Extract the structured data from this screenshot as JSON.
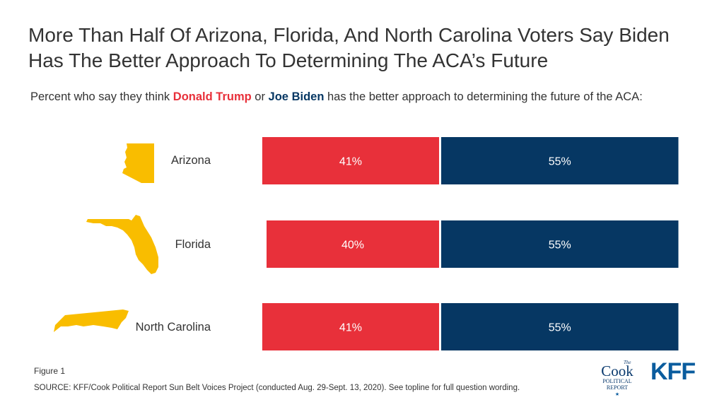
{
  "title": "More Than Half Of Arizona, Florida, And North Carolina Voters Say Biden Has The Better Approach To Determining The ACA’s Future",
  "subtitle": {
    "prefix": "Percent who say they think ",
    "trump": "Donald Trump",
    "mid": " or ",
    "biden": "Joe Biden",
    "suffix": " has the better approach to determining the future of the ACA:"
  },
  "colors": {
    "trump": "#e8303a",
    "biden": "#063763",
    "state": "#f9bd00"
  },
  "chart_data": {
    "type": "bar",
    "orientation": "horizontal-stacked",
    "categories": [
      "Arizona",
      "Florida",
      "North Carolina"
    ],
    "series": [
      {
        "name": "Donald Trump",
        "values": [
          41,
          40,
          41
        ],
        "labels": [
          "41%",
          "40%",
          "41%"
        ]
      },
      {
        "name": "Joe Biden",
        "values": [
          55,
          55,
          55
        ],
        "labels": [
          "55%",
          "55%",
          "55%"
        ]
      }
    ]
  },
  "footer": {
    "figure": "Figure 1",
    "source": "SOURCE: KFF/Cook Political Report Sun Belt Voices Project (conducted Aug. 29-Sept. 13, 2020). See topline for full question wording."
  },
  "logos": {
    "cook": {
      "the": "The",
      "cook": "Cook",
      "political": "POLITICAL",
      "report": "REPORT"
    },
    "kff": "KFF"
  }
}
